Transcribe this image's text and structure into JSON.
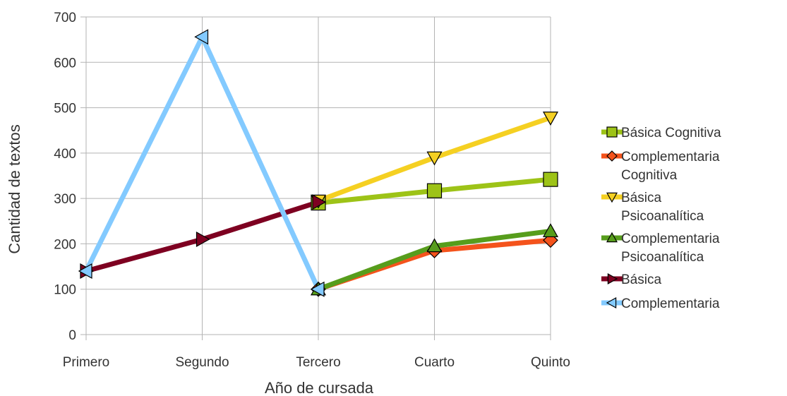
{
  "chart_data": {
    "type": "line",
    "xlabel": "Año de cursada",
    "ylabel": "Cantidad de textos",
    "categories": [
      "Primero",
      "Segundo",
      "Tercero",
      "Cuarto",
      "Quinto"
    ],
    "ylim": [
      0,
      700
    ],
    "yticks": [
      0,
      100,
      200,
      300,
      400,
      500,
      600,
      700
    ],
    "grid": true,
    "legend_position": "right",
    "series": [
      {
        "name": "Básica Cognitiva",
        "color": "#9dc317",
        "marker": "square",
        "values": [
          null,
          null,
          290,
          317,
          342
        ]
      },
      {
        "name": "Complementaria Cognitiva",
        "color": "#f4531c",
        "marker": "diamond",
        "values": [
          null,
          null,
          100,
          185,
          208
        ]
      },
      {
        "name": "Básica Psicoanalítica",
        "color": "#f5d022",
        "marker": "triangle-down",
        "values": [
          null,
          null,
          295,
          390,
          478
        ]
      },
      {
        "name": "Complementaria Psicoanalítica",
        "color": "#579d1c",
        "marker": "triangle-up",
        "values": [
          null,
          null,
          100,
          195,
          228
        ]
      },
      {
        "name": "Básica",
        "color": "#7e0021",
        "marker": "triangle-right",
        "values": [
          140,
          210,
          292,
          null,
          null
        ]
      },
      {
        "name": "Complementaria",
        "color": "#83caff",
        "marker": "triangle-left",
        "values": [
          140,
          656,
          100,
          null,
          null
        ]
      }
    ]
  }
}
